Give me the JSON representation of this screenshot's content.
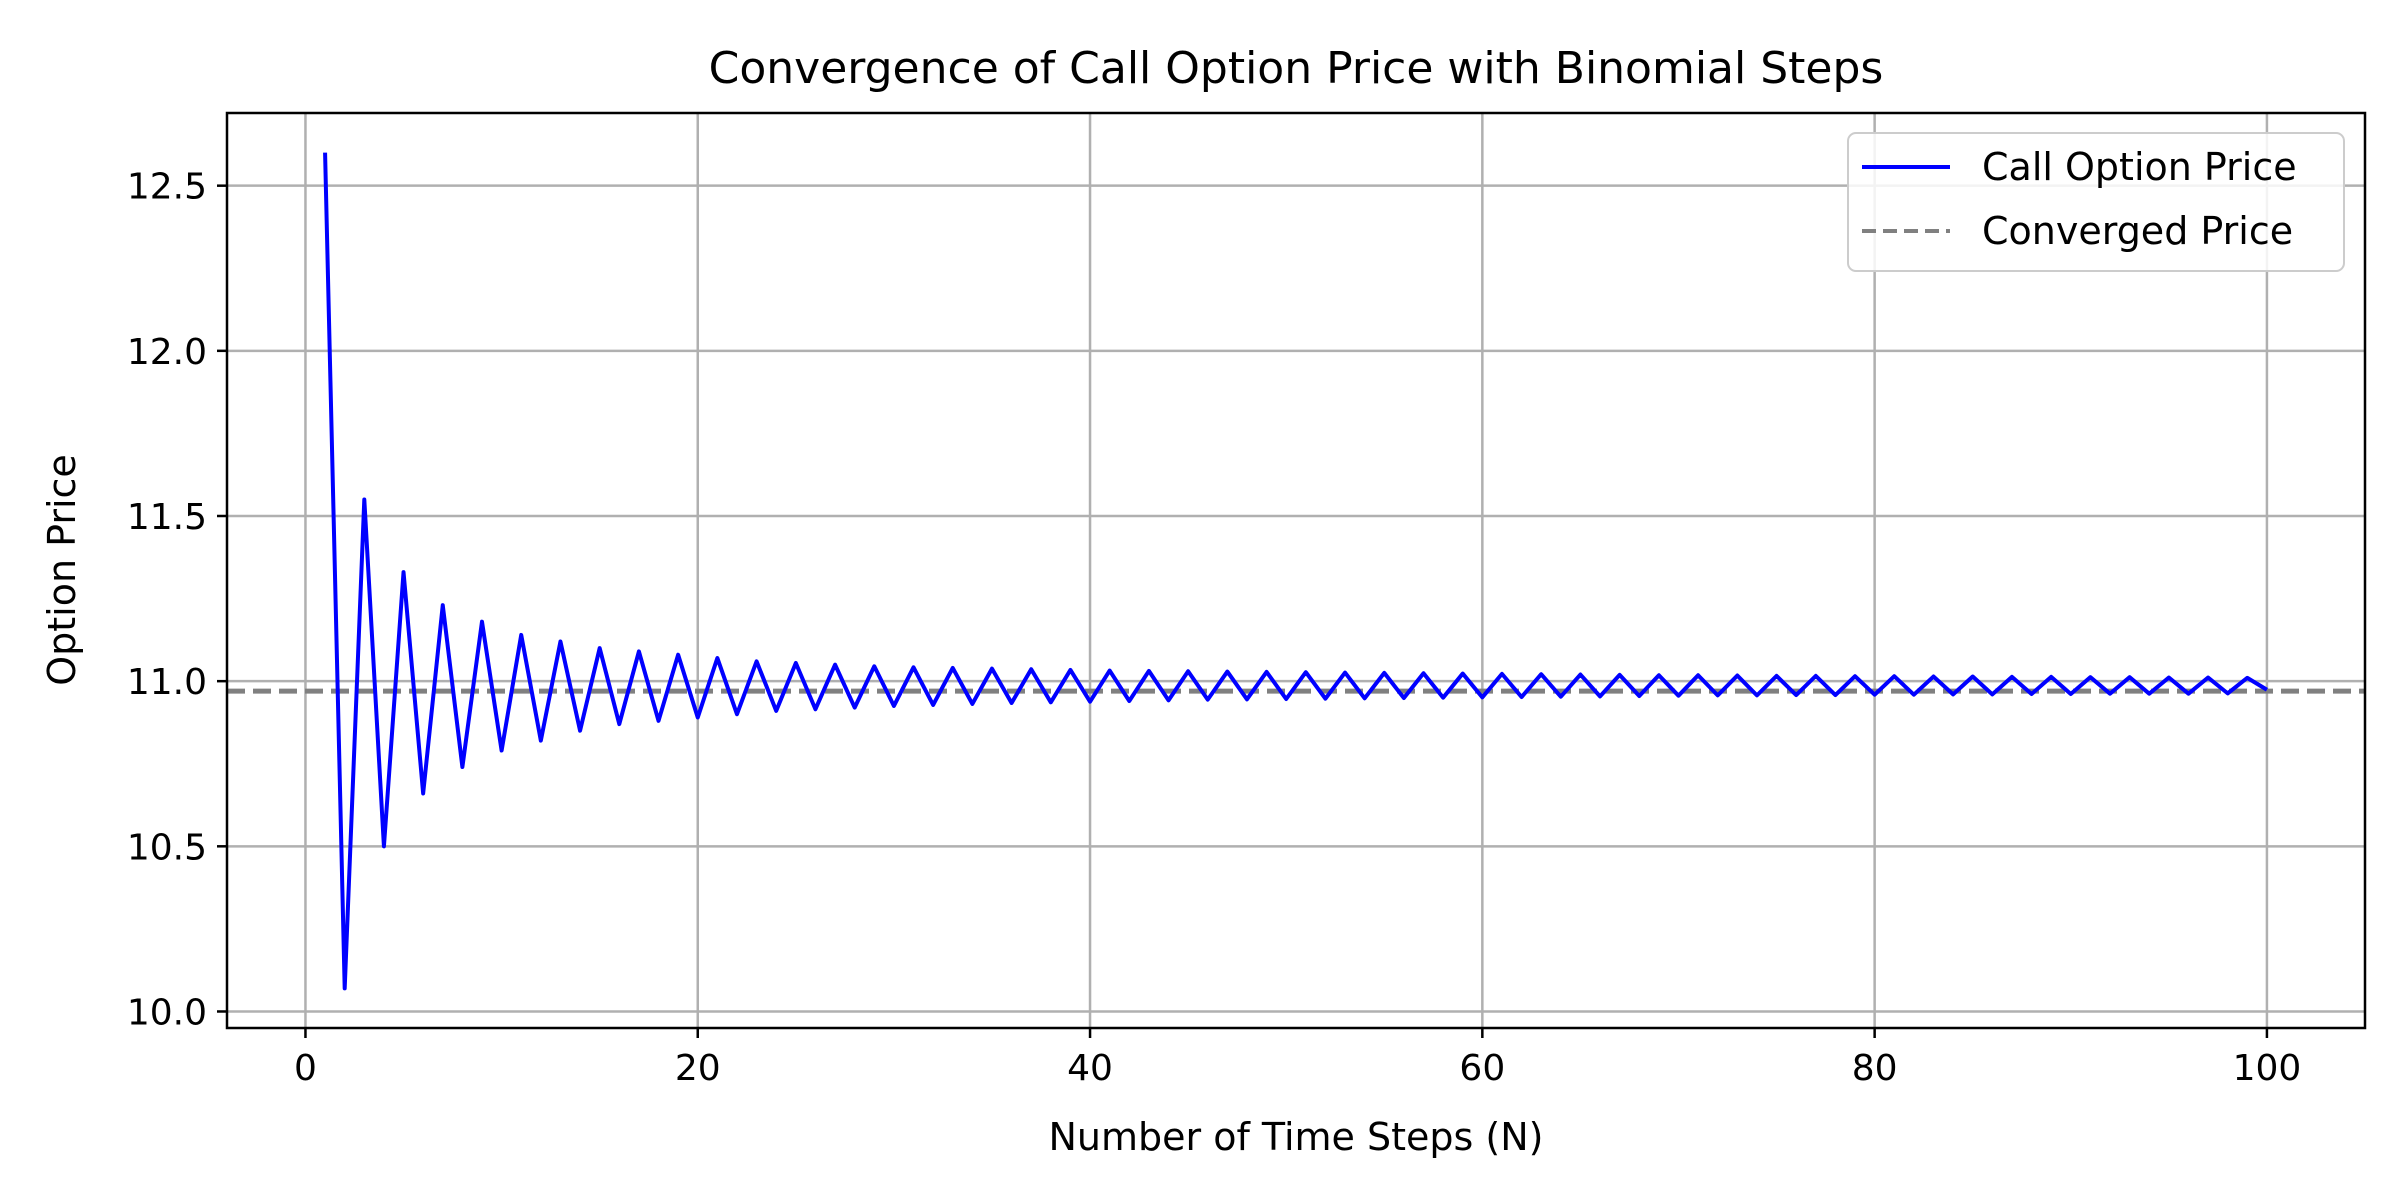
{
  "chart_data": {
    "type": "line",
    "title": "Convergence of Call Option Price with Binomial Steps",
    "xlabel": "Number of Time Steps (N)",
    "ylabel": "Option Price",
    "xlim": [
      -4,
      105
    ],
    "ylim": [
      9.95,
      12.72
    ],
    "xticks": [
      0,
      20,
      40,
      60,
      80,
      100
    ],
    "xtick_labels": [
      "0",
      "20",
      "40",
      "60",
      "80",
      "100"
    ],
    "yticks": [
      10.0,
      10.5,
      11.0,
      11.5,
      12.0,
      12.5
    ],
    "ytick_labels": [
      "10.0",
      "10.5",
      "11.0",
      "11.5",
      "12.0",
      "12.5"
    ],
    "grid": true,
    "legend_position": "upper right",
    "series": [
      {
        "name": "Call Option Price",
        "color": "#0000ff",
        "style": "solid",
        "x": [
          1,
          2,
          3,
          4,
          5,
          6,
          7,
          8,
          9,
          10,
          11,
          12,
          13,
          14,
          15,
          16,
          17,
          18,
          19,
          20,
          21,
          22,
          23,
          24,
          25,
          26,
          27,
          28,
          29,
          30,
          31,
          32,
          33,
          34,
          35,
          36,
          37,
          38,
          39,
          40,
          41,
          42,
          43,
          44,
          45,
          46,
          47,
          48,
          49,
          50,
          51,
          52,
          53,
          54,
          55,
          56,
          57,
          58,
          59,
          60,
          61,
          62,
          63,
          64,
          65,
          66,
          67,
          68,
          69,
          70,
          71,
          72,
          73,
          74,
          75,
          76,
          77,
          78,
          79,
          80,
          81,
          82,
          83,
          84,
          85,
          86,
          87,
          88,
          89,
          90,
          91,
          92,
          93,
          94,
          95,
          96,
          97,
          98,
          99,
          100
        ],
        "y": [
          12.6,
          10.07,
          11.55,
          10.5,
          11.33,
          10.66,
          11.23,
          10.74,
          11.18,
          10.79,
          11.14,
          10.82,
          11.12,
          10.85,
          11.1,
          10.87,
          11.09,
          10.88,
          11.08,
          10.89,
          11.07,
          10.9,
          11.06,
          10.91,
          11.055,
          10.915,
          11.05,
          10.92,
          11.045,
          10.925,
          11.042,
          10.928,
          11.04,
          10.931,
          11.038,
          10.934,
          11.036,
          10.936,
          11.034,
          10.938,
          11.032,
          10.94,
          11.031,
          10.942,
          11.03,
          10.944,
          11.029,
          10.945,
          11.028,
          10.946,
          11.027,
          10.947,
          11.026,
          10.948,
          11.025,
          10.949,
          11.024,
          10.95,
          11.023,
          10.951,
          11.022,
          10.952,
          11.021,
          10.953,
          11.02,
          10.954,
          11.019,
          10.955,
          11.018,
          10.956,
          11.018,
          10.957,
          11.017,
          10.957,
          11.016,
          10.958,
          11.016,
          10.958,
          11.015,
          10.959,
          11.015,
          10.959,
          11.014,
          10.96,
          11.014,
          10.96,
          11.013,
          10.961,
          11.013,
          10.961,
          11.012,
          10.962,
          11.012,
          10.962,
          11.011,
          10.962,
          11.011,
          10.963,
          11.01,
          10.974
        ]
      },
      {
        "name": "Converged Price",
        "color": "#808080",
        "style": "dashed",
        "value": 10.97
      }
    ]
  },
  "colors": {
    "grid": "#b0b0b0",
    "axes": "#000000",
    "legend_border": "#cccccc"
  }
}
